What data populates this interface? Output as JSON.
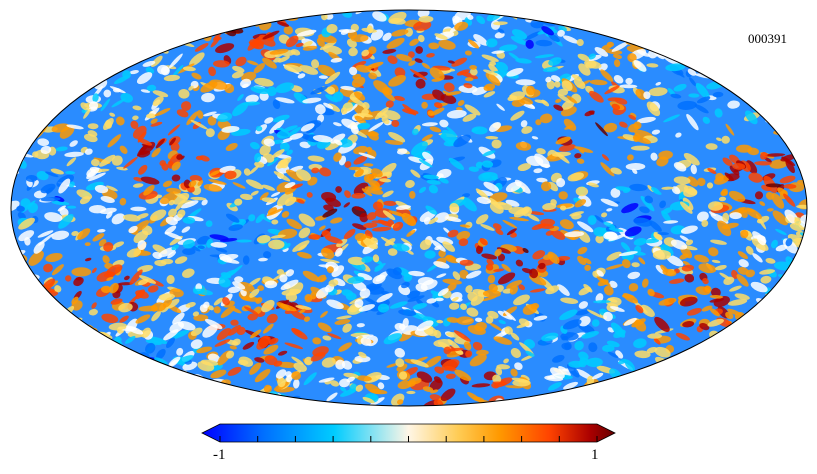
{
  "map": {
    "id_label": "000391",
    "projection": "mollweide",
    "colormap": [
      "#0000ff",
      "#0070ff",
      "#00ccff",
      "#ffffff",
      "#ffdd66",
      "#ff9900",
      "#ff4400",
      "#aa0000",
      "#660000"
    ]
  },
  "colorbar": {
    "min_label": "-1",
    "max_label": "1",
    "min_value": -1,
    "max_value": 1,
    "tick_count": 11
  }
}
